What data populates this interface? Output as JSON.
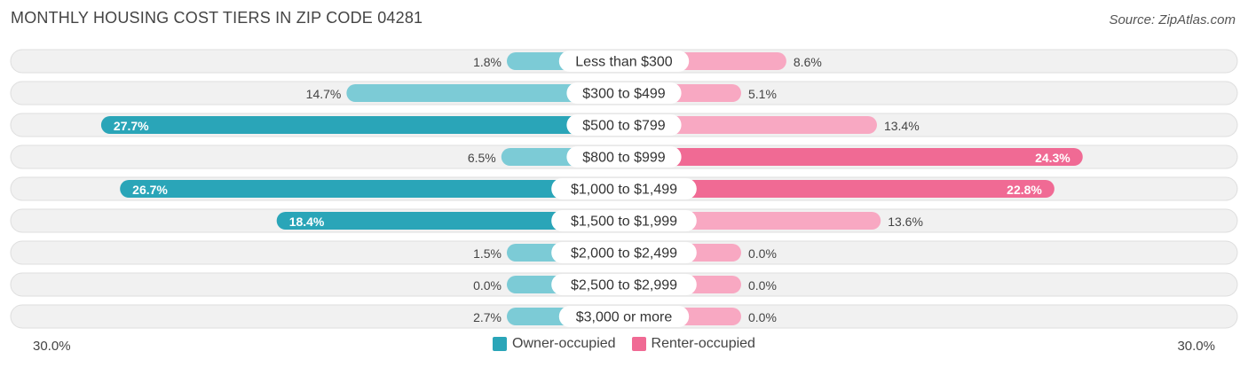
{
  "header": {
    "title": "MONTHLY HOUSING COST TIERS IN ZIP CODE 04281",
    "source": "Source: ZipAtlas.com"
  },
  "colors": {
    "owner_dark": "#2aa5b8",
    "owner_light": "#7ccbd6",
    "renter_dark": "#f06a94",
    "renter_light": "#f8a8c2",
    "row_bg": "#f1f1f1",
    "row_border": "#dedede"
  },
  "legend": {
    "owner_label": "Owner-occupied",
    "renter_label": "Renter-occupied"
  },
  "axis": {
    "left_label": "30.0%",
    "right_label": "30.0%"
  },
  "chart_data": {
    "type": "bar",
    "orientation": "diverging-horizontal",
    "xlim": [
      0,
      30
    ],
    "categories": [
      "Less than $300",
      "$300 to $499",
      "$500 to $799",
      "$800 to $999",
      "$1,000 to $1,499",
      "$1,500 to $1,999",
      "$2,000 to $2,499",
      "$2,500 to $2,999",
      "$3,000 or more"
    ],
    "series": [
      {
        "name": "Owner-occupied",
        "side": "left",
        "values": [
          1.8,
          14.7,
          27.7,
          6.5,
          26.7,
          18.4,
          1.5,
          0.0,
          2.7
        ],
        "labels": [
          "1.8%",
          "14.7%",
          "27.7%",
          "6.5%",
          "26.7%",
          "18.4%",
          "1.5%",
          "0.0%",
          "2.7%"
        ]
      },
      {
        "name": "Renter-occupied",
        "side": "right",
        "values": [
          8.6,
          5.1,
          13.4,
          24.3,
          22.8,
          13.6,
          0.0,
          0.0,
          0.0
        ],
        "labels": [
          "8.6%",
          "5.1%",
          "13.4%",
          "24.3%",
          "22.8%",
          "13.6%",
          "0.0%",
          "0.0%",
          "0.0%"
        ]
      }
    ]
  }
}
